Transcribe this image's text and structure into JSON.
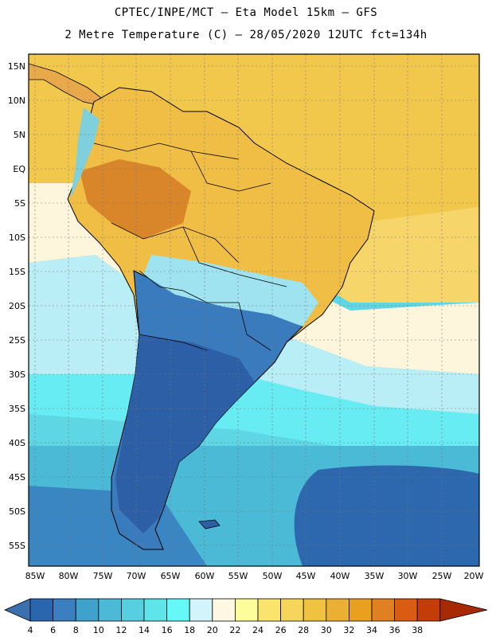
{
  "title_line1": "CPTEC/INPE/MCT –  Eta Model 15km – GFS",
  "title_line2": "2 Metre Temperature (C) – 28/05/2020 12UTC fct=134h",
  "lat_labels": [
    "15N",
    "10N",
    "5N",
    "EQ",
    "5S",
    "10S",
    "15S",
    "20S",
    "25S",
    "30S",
    "35S",
    "40S",
    "45S",
    "50S",
    "55S"
  ],
  "lon_labels": [
    "85W",
    "80W",
    "75W",
    "70W",
    "65W",
    "60W",
    "55W",
    "50W",
    "45W",
    "40W",
    "35W",
    "30W",
    "25W",
    "20W"
  ],
  "colorbar": {
    "ticks": [
      "4",
      "6",
      "8",
      "10",
      "12",
      "14",
      "16",
      "18",
      "20",
      "22",
      "24",
      "26",
      "28",
      "30",
      "32",
      "34",
      "36",
      "38"
    ],
    "colors": [
      "#3a6fb0",
      "#2a66ad",
      "#3a7fbf",
      "#3ea2cc",
      "#4cb9d6",
      "#58cfe0",
      "#5fe4ea",
      "#66f7f7",
      "#d3f4fb",
      "#fef8e3",
      "#fdfd9b",
      "#fbe46e",
      "#f5d55a",
      "#efc23f",
      "#ebb033",
      "#e9a01f",
      "#e08022",
      "#d95c12",
      "#c43c08",
      "#a82a04"
    ]
  }
}
